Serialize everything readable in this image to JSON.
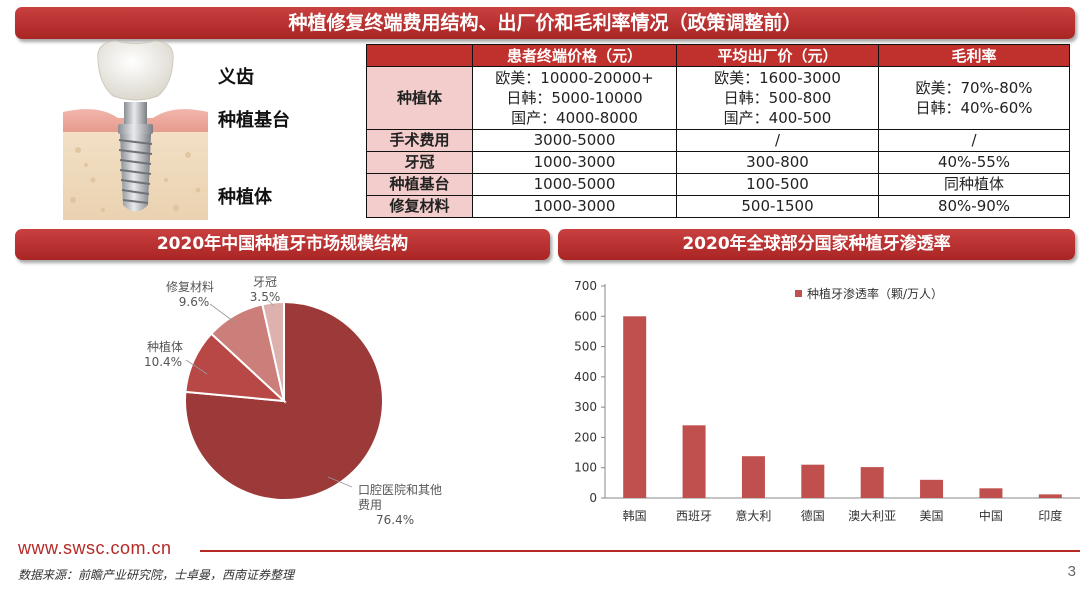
{
  "header": {
    "title": "种植修复终端费用结构、出厂价和毛利率情况（政策调整前）"
  },
  "implant_labels": {
    "crown": "义齿",
    "abutment": "种植基台",
    "fixture": "种植体"
  },
  "fee_table": {
    "headers": [
      "",
      "患者终端价格（元）",
      "平均出厂价（元）",
      "毛利率"
    ],
    "implant_row": {
      "label": "种植体",
      "terminal": [
        "欧美：10000-20000+",
        "日韩：5000-10000",
        "国产：4000-8000"
      ],
      "factory": [
        "欧美：1600-3000",
        "日韩：500-800",
        "国产：400-500"
      ],
      "margin": [
        "欧美：70%-80%",
        "日韩：40%-60%"
      ]
    },
    "rows": [
      {
        "label": "手术费用",
        "terminal": "3000-5000",
        "factory": "/",
        "margin": "/"
      },
      {
        "label": "牙冠",
        "terminal": "1000-3000",
        "factory": "300-800",
        "margin": "40%-55%"
      },
      {
        "label": "种植基台",
        "terminal": "1000-5000",
        "factory": "100-500",
        "margin": "同种植体"
      },
      {
        "label": "修复材料",
        "terminal": "1000-3000",
        "factory": "500-1500",
        "margin": "80%-90%"
      }
    ]
  },
  "pie_section": {
    "title": "2020年中国种植牙市场规模结构"
  },
  "bar_section": {
    "title": "2020年全球部分国家种植牙渗透率"
  },
  "chart_data": [
    {
      "type": "pie",
      "title": "2020年中国种植牙市场规模结构",
      "slices": [
        {
          "label": "口腔医院和其他费用",
          "label_lines": [
            "口腔医院和其他",
            "费用"
          ],
          "value": 76.4,
          "pct_text": "76.4%",
          "color": "#9b3a38"
        },
        {
          "label": "种植体",
          "label_lines": [
            "种植体"
          ],
          "value": 10.4,
          "pct_text": "10.4%",
          "color": "#b84846"
        },
        {
          "label": "修复材料",
          "label_lines": [
            "修复材料"
          ],
          "value": 9.6,
          "pct_text": "9.6%",
          "color": "#cc7e7b"
        },
        {
          "label": "牙冠",
          "label_lines": [
            "牙冠"
          ],
          "value": 3.5,
          "pct_text": "3.5%",
          "color": "#ddb1ae"
        }
      ]
    },
    {
      "type": "bar",
      "title": "2020年全球部分国家种植牙渗透率",
      "categories": [
        "韩国",
        "西班牙",
        "意大利",
        "德国",
        "澳大利亚",
        "美国",
        "中国",
        "印度"
      ],
      "series": [
        {
          "name": "种植牙渗透率（颗/万人）",
          "values": [
            600,
            240,
            138,
            110,
            102,
            60,
            32,
            12
          ],
          "color": "#c0504d"
        }
      ],
      "ylim": [
        0,
        700
      ],
      "yticks": [
        0,
        100,
        200,
        300,
        400,
        500,
        600,
        700
      ],
      "legend_position": "top-right",
      "grid": false
    }
  ],
  "footer": {
    "url": "www.swsc.com.cn",
    "source": "数据来源：前瞻产业研究院，士卓曼，西南证券整理",
    "page": "3"
  }
}
